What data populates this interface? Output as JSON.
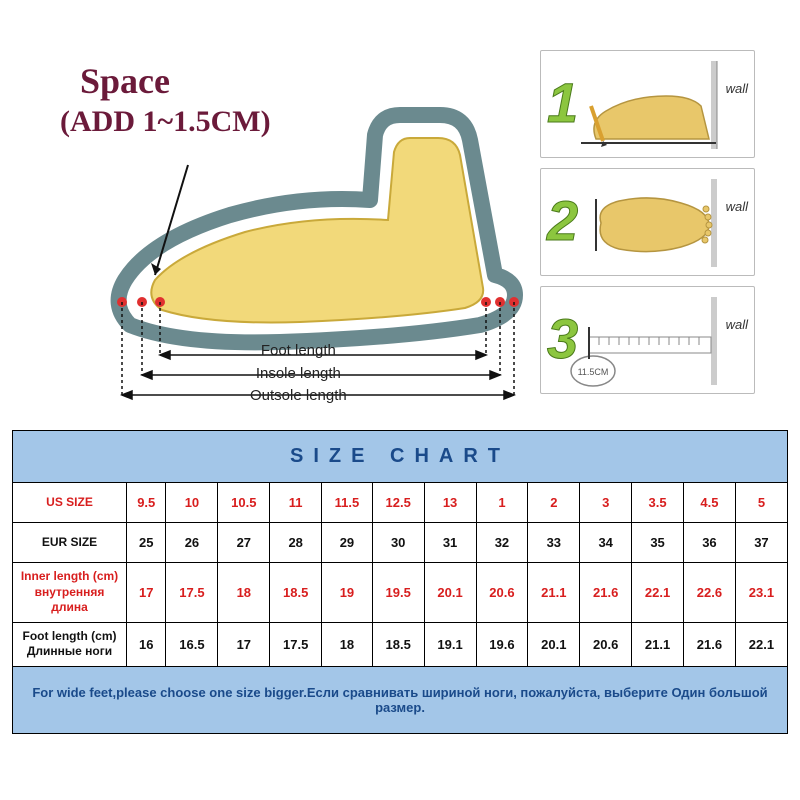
{
  "diagram": {
    "title": "Space",
    "subtitle": "(ADD 1~1.5CM)",
    "title_color": "#6b1a3a",
    "measure_labels": [
      "Foot length",
      "Insole length",
      "Outsole length"
    ],
    "shoe_fill": "#f2d97a",
    "shoe_outline": "#6b8a8f",
    "arrow_color": "#111111",
    "dot_color": "#e03030"
  },
  "steps": {
    "wall_label": "wall",
    "step_color": "#8cc63f",
    "foot_color": "#e8c76a",
    "ruler_value": "11.5CM",
    "items": [
      {
        "num": "1"
      },
      {
        "num": "2"
      },
      {
        "num": "3"
      }
    ]
  },
  "table": {
    "header": "SIZE    CHART",
    "header_bg": "#a3c6e8",
    "header_color": "#1a4a8a",
    "red_color": "#d81e1e",
    "black_color": "#111111",
    "rows": [
      {
        "label": "US SIZE",
        "sublabel": "",
        "style": "red",
        "cells": [
          "9.5",
          "10",
          "10.5",
          "11",
          "11.5",
          "12.5",
          "13",
          "1",
          "2",
          "3",
          "3.5",
          "4.5",
          "5"
        ]
      },
      {
        "label": "EUR SIZE",
        "sublabel": "",
        "style": "black",
        "cells": [
          "25",
          "26",
          "27",
          "28",
          "29",
          "30",
          "31",
          "32",
          "33",
          "34",
          "35",
          "36",
          "37"
        ]
      },
      {
        "label": "Inner length (cm)",
        "sublabel": "внутренняя длина",
        "style": "red",
        "cells": [
          "17",
          "17.5",
          "18",
          "18.5",
          "19",
          "19.5",
          "20.1",
          "20.6",
          "21.1",
          "21.6",
          "22.1",
          "22.6",
          "23.1"
        ]
      },
      {
        "label": "Foot length (cm)",
        "sublabel": "Длинные ноги",
        "style": "black",
        "cells": [
          "16",
          "16.5",
          "17",
          "17.5",
          "18",
          "18.5",
          "19.1",
          "19.6",
          "20.1",
          "20.6",
          "21.1",
          "21.6",
          "22.1"
        ]
      }
    ],
    "footer": "For wide feet,please choose one size bigger.Если сравнивать шириной ноги, пожалуйста, выберите Один большой размер."
  }
}
